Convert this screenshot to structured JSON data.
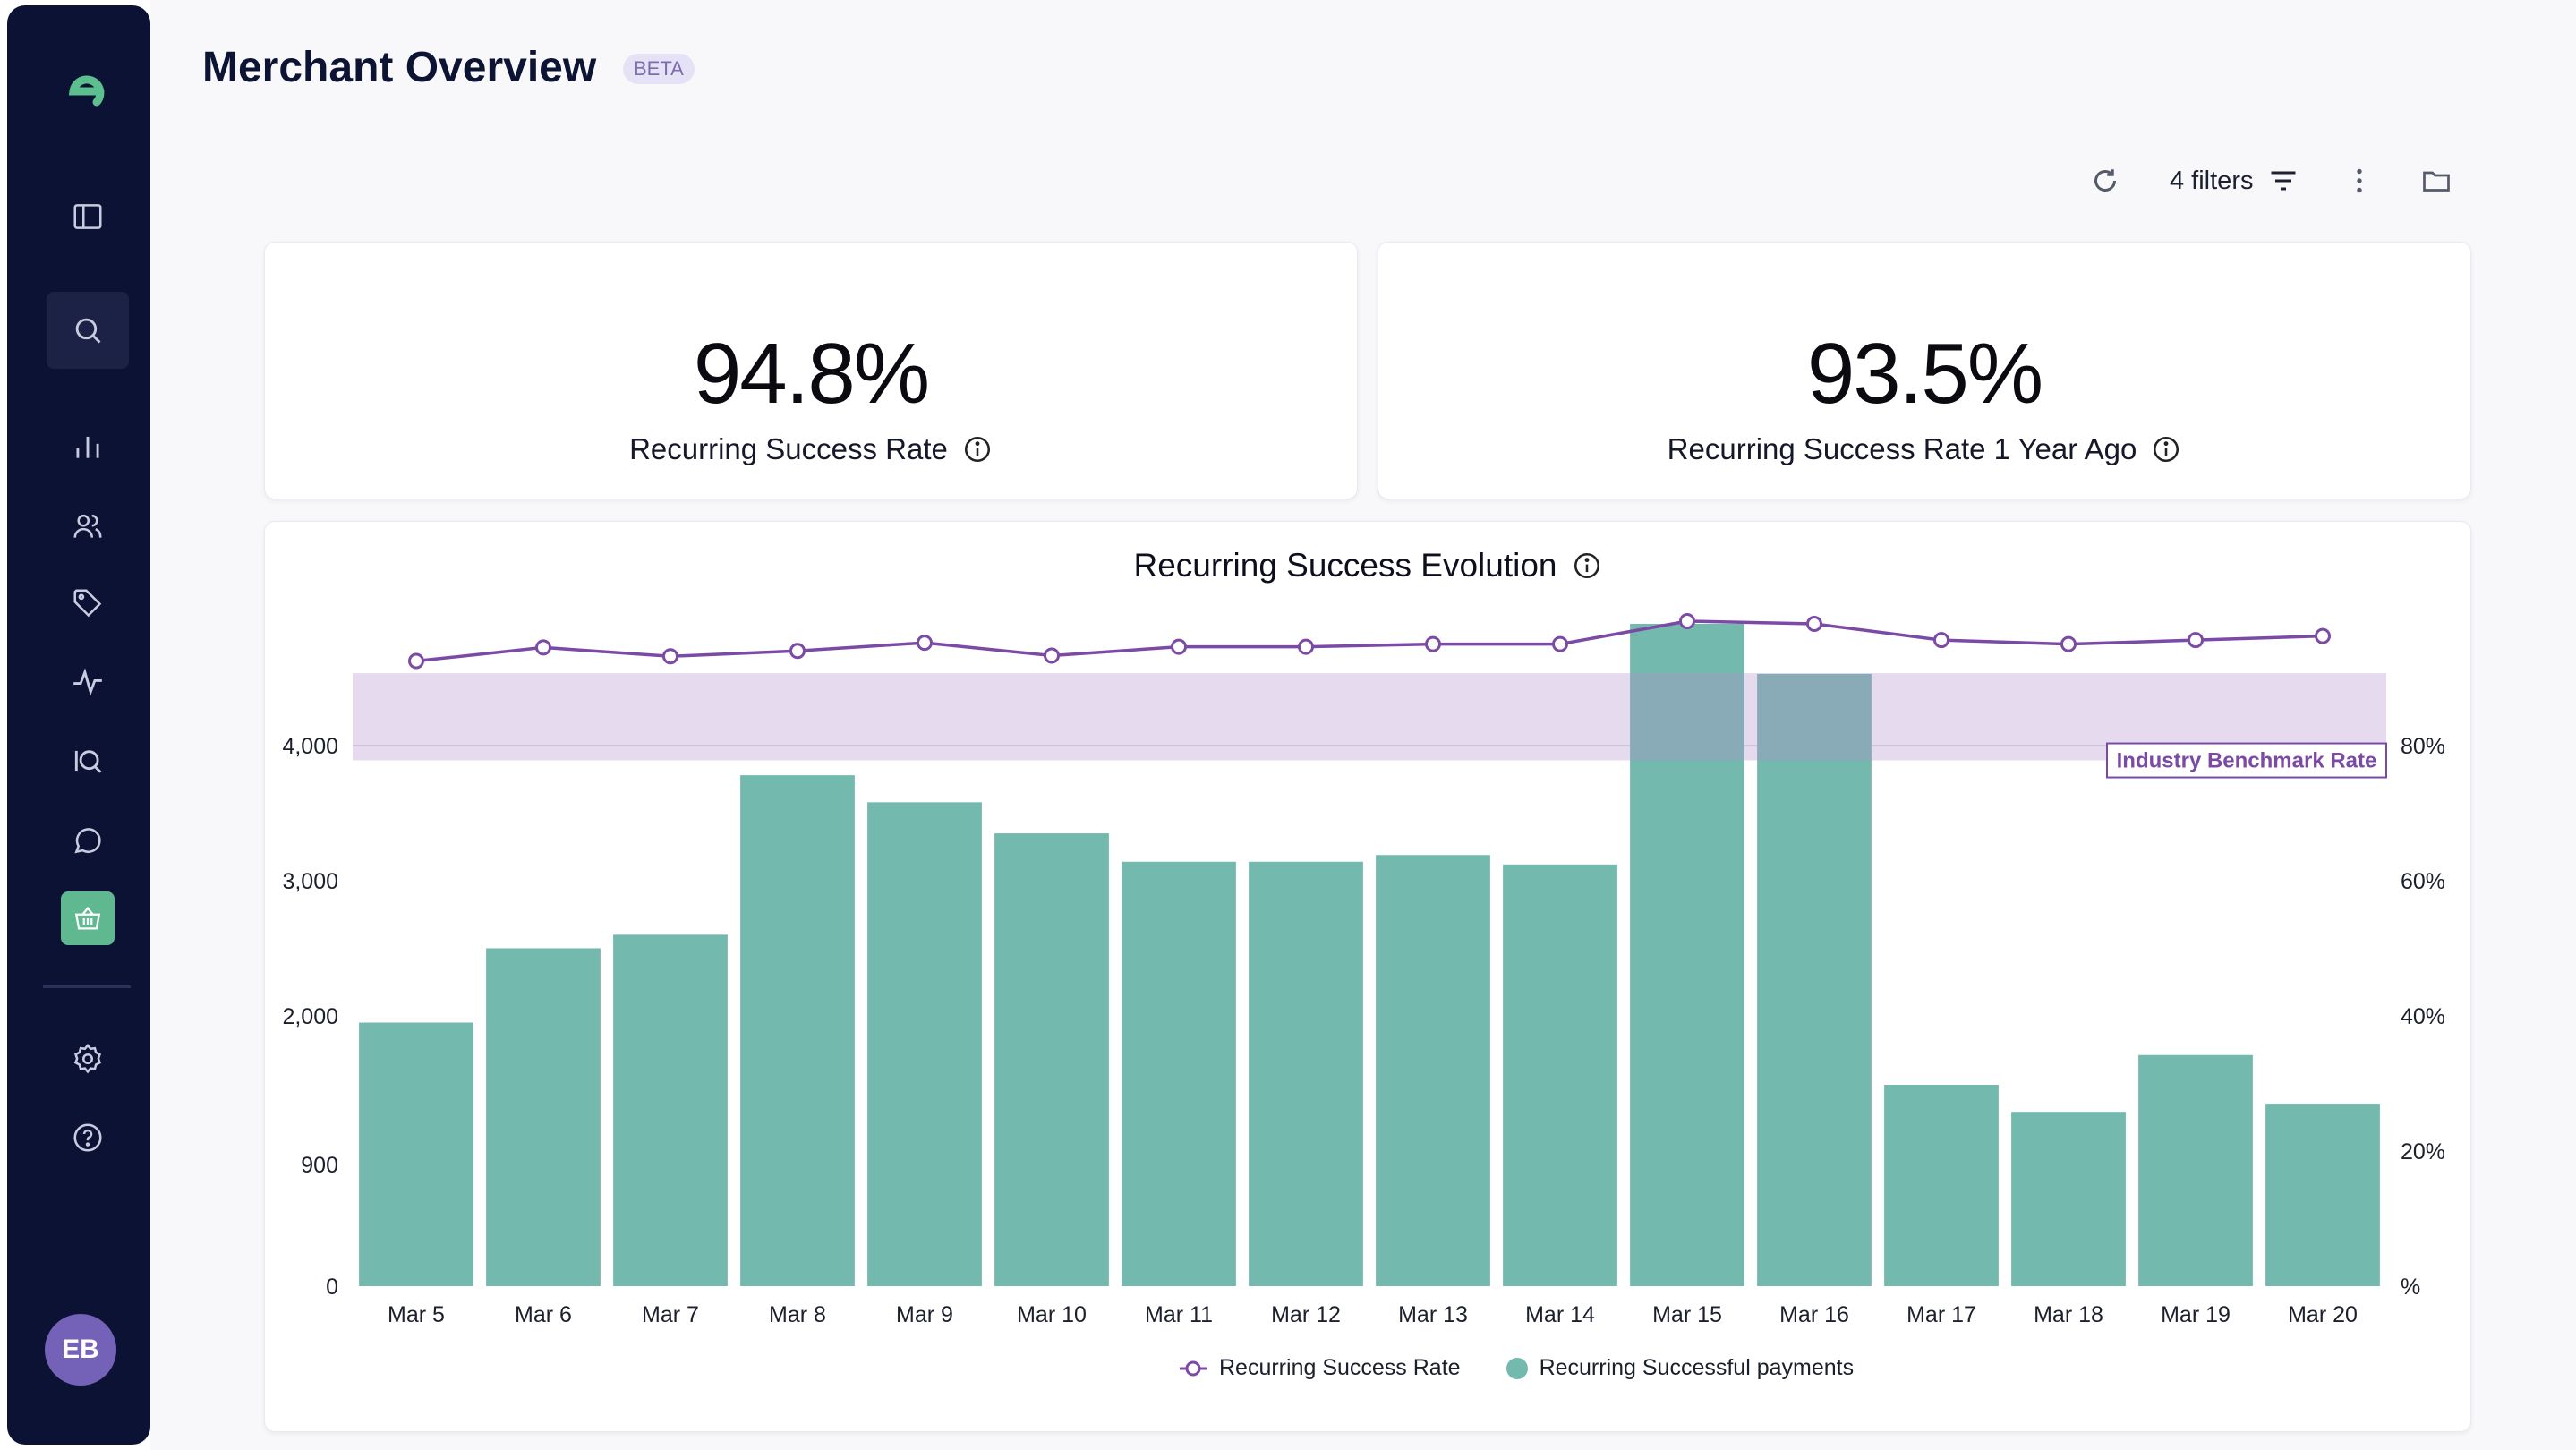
{
  "page": {
    "title": "Merchant Overview",
    "badge": "BETA"
  },
  "sidebar": {
    "items": [
      "logo-icon",
      "panel-icon",
      "search-icon",
      "bar-chart-icon",
      "users-icon",
      "tag-icon",
      "activity-icon",
      "iq-icon",
      "chat-icon",
      "basket-icon",
      "settings-icon",
      "help-icon"
    ],
    "avatar_initials": "EB"
  },
  "toolbar": {
    "filters_label": "4 filters"
  },
  "kpis": [
    {
      "value": "94.8%",
      "label": "Recurring Success Rate"
    },
    {
      "value": "93.5%",
      "label": "Recurring Success Rate 1 Year Ago"
    }
  ],
  "chart": {
    "title": "Recurring Success Evolution",
    "benchmark_label": "Industry Benchmark Rate",
    "legend": {
      "line": "Recurring Success Rate",
      "bars": "Recurring Successful payments"
    },
    "colors": {
      "bar": "#74b9ad",
      "line": "#7b4aa6",
      "band": "#e3d6ec"
    }
  },
  "chart_data": {
    "type": "bar",
    "categories": [
      "Mar 5",
      "Mar 6",
      "Mar 7",
      "Mar 8",
      "Mar 9",
      "Mar 10",
      "Mar 11",
      "Mar 12",
      "Mar 13",
      "Mar 14",
      "Mar 15",
      "Mar 16",
      "Mar 17",
      "Mar 18",
      "Mar 19",
      "Mar 20"
    ],
    "series": [
      {
        "name": "Recurring Successful payments",
        "axis": "left",
        "values": [
          1950,
          2500,
          2600,
          3780,
          3580,
          3350,
          3140,
          3140,
          3190,
          3120,
          4900,
          4530,
          1490,
          1290,
          1710,
          1350
        ]
      },
      {
        "name": "Recurring Success Rate",
        "axis": "right",
        "unit": "%",
        "values": [
          92.5,
          94.5,
          93.2,
          94.0,
          95.2,
          93.3,
          94.6,
          94.6,
          95.0,
          95.0,
          98.4,
          98.0,
          95.6,
          95.0,
          95.6,
          96.2
        ]
      }
    ],
    "benchmark_band": {
      "name": "Industry Benchmark Rate",
      "range": [
        77.8,
        90.7
      ]
    },
    "left_axis": {
      "ticks": [
        0,
        900,
        2000,
        3000,
        4000
      ],
      "tick_labels": [
        "0",
        "900",
        "2,000",
        "3,000",
        "4,000"
      ],
      "ylim": [
        0,
        4900
      ]
    },
    "right_axis": {
      "ticks": [
        0,
        20,
        40,
        60,
        80
      ],
      "tick_labels": [
        "%",
        "20%",
        "40%",
        "60%",
        "80%"
      ],
      "ylim": [
        0,
        98
      ]
    }
  }
}
